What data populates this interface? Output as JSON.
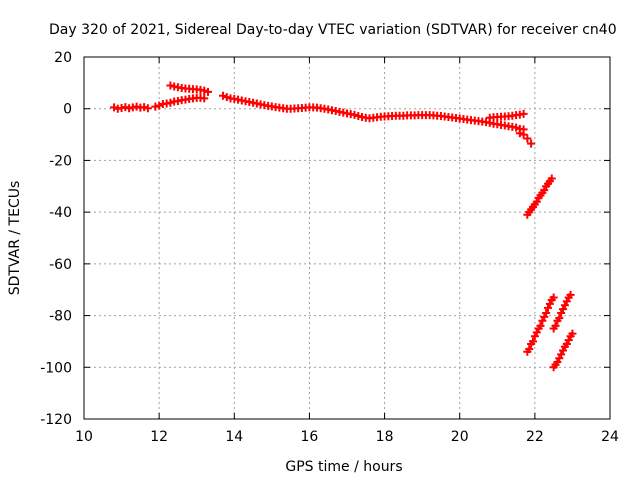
{
  "chart_data": {
    "type": "scatter",
    "title": "Day 320 of 2021, Sidereal Day-to-day VTEC variation (SDTVAR) for receiver cn40",
    "xlabel": "GPS time / hours",
    "ylabel": "SDTVAR / TECUs",
    "xlim": [
      10,
      24
    ],
    "ylim": [
      -120,
      20
    ],
    "xticks": [
      "10",
      "12",
      "14",
      "16",
      "18",
      "20",
      "22",
      "24"
    ],
    "yticks": [
      "20",
      "0",
      "-20",
      "-40",
      "-60",
      "-80",
      "-100",
      "-120"
    ],
    "grid": true,
    "legend": "none",
    "marker": "plus",
    "color": "#ff0000",
    "series": [
      {
        "values": [
          [
            10.8,
            0.5
          ],
          [
            10.9,
            0.0
          ],
          [
            11.0,
            0.3
          ],
          [
            11.1,
            0.6
          ],
          [
            11.2,
            0.2
          ],
          [
            11.3,
            0.5
          ],
          [
            11.4,
            0.8
          ],
          [
            11.5,
            0.4
          ],
          [
            11.6,
            0.6
          ],
          [
            11.7,
            0.2
          ],
          [
            11.9,
            0.8
          ],
          [
            12.0,
            1.2
          ],
          [
            12.1,
            1.8
          ],
          [
            12.2,
            2.0
          ],
          [
            12.3,
            2.3
          ],
          [
            12.4,
            2.8
          ],
          [
            12.5,
            3.0
          ],
          [
            12.6,
            3.3
          ],
          [
            12.7,
            3.5
          ],
          [
            12.8,
            3.8
          ],
          [
            12.9,
            4.0
          ],
          [
            13.0,
            4.2
          ],
          [
            13.1,
            4.2
          ],
          [
            13.2,
            4.0
          ],
          [
            12.3,
            9.0
          ],
          [
            12.4,
            8.6
          ],
          [
            12.5,
            8.3
          ],
          [
            12.6,
            8.0
          ],
          [
            12.7,
            7.8
          ],
          [
            12.8,
            7.7
          ],
          [
            12.9,
            7.6
          ],
          [
            13.0,
            7.5
          ],
          [
            13.1,
            7.3
          ],
          [
            13.2,
            7.0
          ],
          [
            13.3,
            6.5
          ],
          [
            13.7,
            5.0
          ],
          [
            13.8,
            4.5
          ],
          [
            13.9,
            4.0
          ],
          [
            14.0,
            3.8
          ],
          [
            14.1,
            3.5
          ],
          [
            14.2,
            3.2
          ],
          [
            14.3,
            2.9
          ],
          [
            14.4,
            2.6
          ],
          [
            14.5,
            2.3
          ],
          [
            14.6,
            2.0
          ],
          [
            14.7,
            1.7
          ],
          [
            14.8,
            1.4
          ],
          [
            14.9,
            1.1
          ],
          [
            15.0,
            0.9
          ],
          [
            15.1,
            0.6
          ],
          [
            15.2,
            0.4
          ],
          [
            15.3,
            0.2
          ],
          [
            15.4,
            0.0
          ],
          [
            15.5,
            0.0
          ],
          [
            15.6,
            0.1
          ],
          [
            15.7,
            0.2
          ],
          [
            15.8,
            0.3
          ],
          [
            15.9,
            0.4
          ],
          [
            16.0,
            0.5
          ],
          [
            16.1,
            0.5
          ],
          [
            16.2,
            0.4
          ],
          [
            16.3,
            0.2
          ],
          [
            16.4,
            0.0
          ],
          [
            16.5,
            -0.3
          ],
          [
            16.6,
            -0.6
          ],
          [
            16.7,
            -0.9
          ],
          [
            16.8,
            -1.2
          ],
          [
            16.9,
            -1.5
          ],
          [
            17.0,
            -1.8
          ],
          [
            17.1,
            -2.1
          ],
          [
            17.2,
            -2.4
          ],
          [
            17.3,
            -2.8
          ],
          [
            17.4,
            -3.2
          ],
          [
            17.5,
            -3.5
          ],
          [
            17.6,
            -3.7
          ],
          [
            17.7,
            -3.5
          ],
          [
            17.8,
            -3.3
          ],
          [
            17.9,
            -3.1
          ],
          [
            18.0,
            -3.0
          ],
          [
            18.1,
            -2.9
          ],
          [
            18.2,
            -2.8
          ],
          [
            18.3,
            -2.7
          ],
          [
            18.4,
            -2.7
          ],
          [
            18.5,
            -2.7
          ],
          [
            18.6,
            -2.6
          ],
          [
            18.7,
            -2.6
          ],
          [
            18.8,
            -2.6
          ],
          [
            18.9,
            -2.5
          ],
          [
            19.0,
            -2.5
          ],
          [
            19.1,
            -2.5
          ],
          [
            19.2,
            -2.5
          ],
          [
            19.3,
            -2.6
          ],
          [
            19.4,
            -2.7
          ],
          [
            19.5,
            -2.8
          ],
          [
            19.6,
            -3.0
          ],
          [
            19.7,
            -3.2
          ],
          [
            19.8,
            -3.4
          ],
          [
            19.9,
            -3.6
          ],
          [
            20.0,
            -3.8
          ],
          [
            20.1,
            -4.0
          ],
          [
            20.2,
            -4.2
          ],
          [
            20.3,
            -4.4
          ],
          [
            20.4,
            -4.6
          ],
          [
            20.5,
            -4.8
          ],
          [
            20.6,
            -5.0
          ],
          [
            20.7,
            -5.2
          ],
          [
            20.8,
            -5.5
          ],
          [
            20.9,
            -5.8
          ],
          [
            21.0,
            -6.0
          ],
          [
            21.1,
            -6.3
          ],
          [
            21.2,
            -6.5
          ],
          [
            21.3,
            -6.8
          ],
          [
            21.4,
            -7.0
          ],
          [
            21.5,
            -7.3
          ],
          [
            21.6,
            -7.8
          ],
          [
            21.7,
            -8.0
          ],
          [
            20.8,
            -3.5
          ],
          [
            20.9,
            -3.3
          ],
          [
            21.0,
            -3.2
          ],
          [
            21.1,
            -3.1
          ],
          [
            21.2,
            -3.0
          ],
          [
            21.3,
            -2.9
          ],
          [
            21.4,
            -2.7
          ],
          [
            21.5,
            -2.5
          ],
          [
            21.6,
            -2.3
          ],
          [
            21.7,
            -2.0
          ],
          [
            21.6,
            -9.5
          ],
          [
            21.7,
            -10.0
          ],
          [
            21.8,
            -11.5
          ],
          [
            21.9,
            -13.5
          ],
          [
            21.8,
            -41
          ],
          [
            21.85,
            -40
          ],
          [
            21.9,
            -39
          ],
          [
            21.95,
            -38
          ],
          [
            22.0,
            -37
          ],
          [
            22.05,
            -36
          ],
          [
            22.1,
            -34.5
          ],
          [
            22.15,
            -33.5
          ],
          [
            22.2,
            -32.5
          ],
          [
            22.25,
            -31.5
          ],
          [
            22.3,
            -30
          ],
          [
            22.35,
            -29
          ],
          [
            22.4,
            -28
          ],
          [
            22.45,
            -27
          ],
          [
            21.8,
            -94
          ],
          [
            21.85,
            -93
          ],
          [
            21.9,
            -91
          ],
          [
            21.95,
            -90
          ],
          [
            22.0,
            -88
          ],
          [
            22.05,
            -86.5
          ],
          [
            22.1,
            -85
          ],
          [
            22.15,
            -84
          ],
          [
            22.2,
            -82
          ],
          [
            22.25,
            -80.5
          ],
          [
            22.3,
            -79
          ],
          [
            22.35,
            -77
          ],
          [
            22.4,
            -75.5
          ],
          [
            22.45,
            -74
          ],
          [
            22.5,
            -73
          ],
          [
            22.5,
            -85
          ],
          [
            22.55,
            -84
          ],
          [
            22.6,
            -82
          ],
          [
            22.65,
            -81
          ],
          [
            22.7,
            -79
          ],
          [
            22.75,
            -77.5
          ],
          [
            22.8,
            -76
          ],
          [
            22.85,
            -74.5
          ],
          [
            22.9,
            -73
          ],
          [
            22.95,
            -72
          ],
          [
            22.5,
            -100
          ],
          [
            22.55,
            -99
          ],
          [
            22.6,
            -98
          ],
          [
            22.65,
            -96.5
          ],
          [
            22.7,
            -95
          ],
          [
            22.75,
            -93.5
          ],
          [
            22.8,
            -92
          ],
          [
            22.85,
            -91
          ],
          [
            22.9,
            -89.5
          ],
          [
            22.95,
            -88
          ],
          [
            23.0,
            -87
          ]
        ]
      }
    ]
  }
}
